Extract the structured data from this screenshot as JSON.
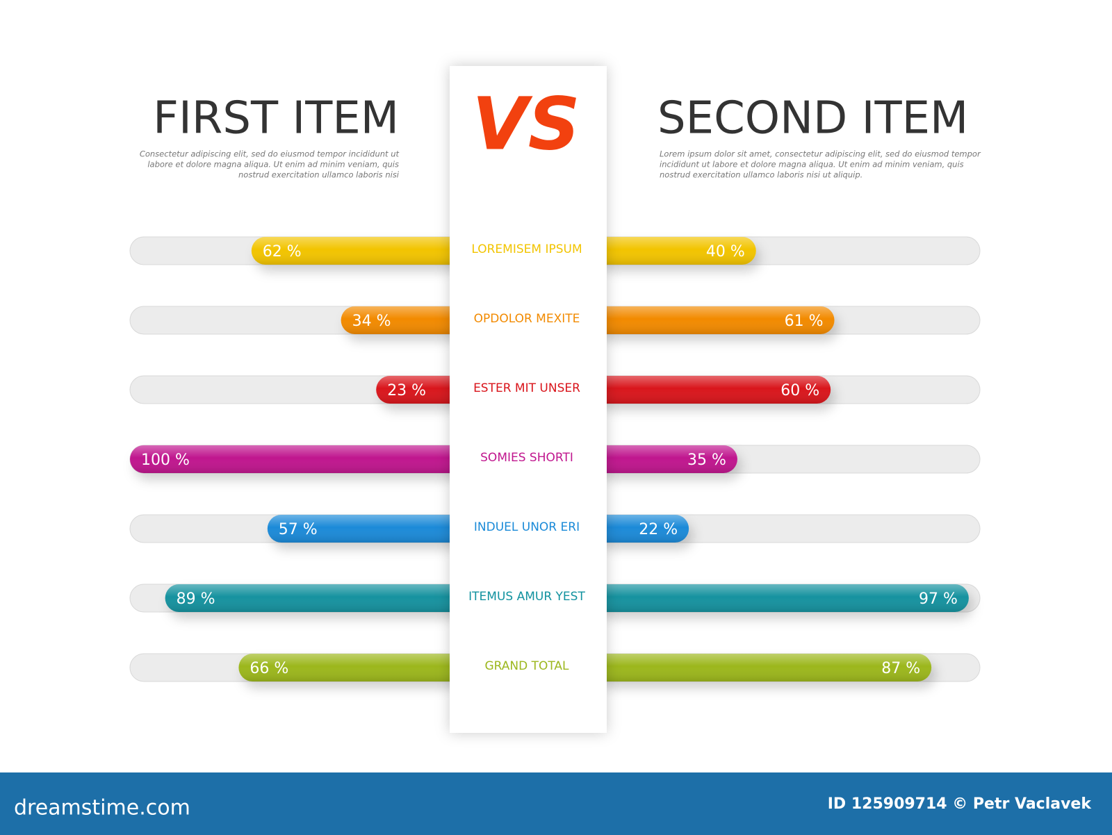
{
  "chart_data": {
    "type": "butterfly-bar",
    "vs_label": "VS",
    "categories": [
      "LOREMISEM IPSUM",
      "OPDOLOR MEXITE",
      "ESTER MIT UNSER",
      "SOMIES SHORTI",
      "INDUEL UNOR ERI",
      "ITEMUS AMUR YEST",
      "GRAND TOTAL"
    ],
    "colors": [
      "#f2c400",
      "#f28a00",
      "#d9141b",
      "#c0168e",
      "#1a8ad8",
      "#12929f",
      "#9cb71d"
    ],
    "xlim": [
      0,
      100
    ],
    "series": [
      {
        "name": "FIRST ITEM",
        "description": [
          "Consectetur adipiscing elit, sed do eiusmod tempor incididunt ut",
          "labore et dolore magna aliqua. Ut enim ad minim veniam, quis",
          "nostrud exercitation ullamco laboris nisi"
        ],
        "values": [
          62,
          34,
          23,
          100,
          57,
          89,
          66
        ],
        "value_labels": [
          "62 %",
          "34 %",
          "23 %",
          "100 %",
          "57 %",
          "89 %",
          "66 %"
        ]
      },
      {
        "name": "SECOND ITEM",
        "description": [
          "Lorem ipsum dolor sit amet, consectetur adipiscing elit, sed do eiusmod tempor",
          "incididunt ut labore et dolore magna aliqua. Ut enim ad minim veniam, quis",
          "nostrud exercitation ullamco laboris nisi ut aliquip."
        ],
        "values": [
          40,
          61,
          60,
          35,
          22,
          97,
          87
        ],
        "value_labels": [
          "40 %",
          "61 %",
          "60 %",
          "35 %",
          "22 %",
          "97 %",
          "87 %"
        ]
      }
    ]
  },
  "footer": {
    "site": "dreamstime.com",
    "credit": "ID 125909714 © Petr Vaclavek"
  }
}
